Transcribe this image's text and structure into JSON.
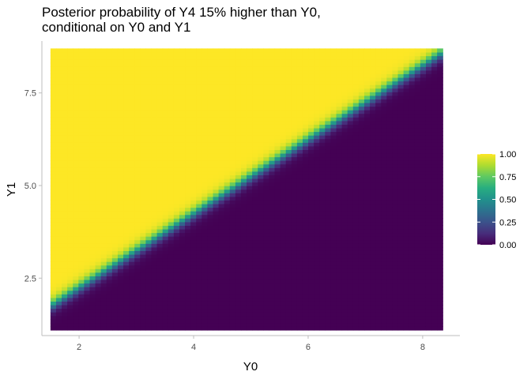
{
  "chart_data": {
    "type": "heatmap",
    "title": "Posterior probability of Y4 15% higher than Y0,",
    "subtitle": "conditional on Y0 and Y1",
    "xlabel": "Y0",
    "ylabel": "Y1",
    "xlim": [
      1.35,
      8.65
    ],
    "ylim": [
      0.95,
      8.9
    ],
    "x_range": [
      1.5,
      8.35
    ],
    "y_range": [
      1.1,
      8.7
    ],
    "x_ticks": [
      2,
      4,
      6,
      8
    ],
    "x_tick_labels": [
      "2",
      "4",
      "6",
      "8"
    ],
    "y_ticks": [
      2.5,
      5.0,
      7.5
    ],
    "y_tick_labels": [
      "2.5",
      "5.0",
      "7.5"
    ],
    "grid": false,
    "colorscale": "viridis",
    "legend": {
      "placement": "right",
      "title": "",
      "ticks": [
        0.0,
        0.25,
        0.5,
        0.75,
        1.0
      ],
      "tick_labels": [
        "0.00",
        "0.25",
        "0.50",
        "0.75",
        "1.00"
      ]
    },
    "boundary": {
      "description_points": [
        [
          1.5,
          1.75
        ],
        [
          8.35,
          8.6
        ]
      ],
      "transition_width": 0.32
    }
  }
}
